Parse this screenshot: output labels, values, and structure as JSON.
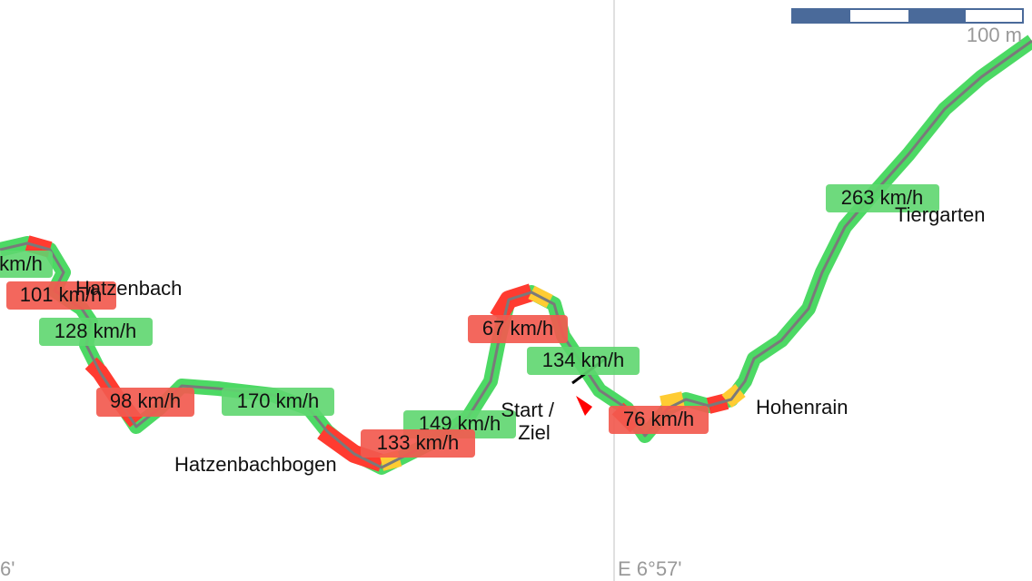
{
  "map": {
    "scale_label": "100 m",
    "longitude_labels": [
      "6'",
      "E 6°57'"
    ],
    "speed_labels": [
      "km/h",
      "101 km/h",
      "128 km/h",
      "98 km/h",
      "170 km/h",
      "149 km/h",
      "133 km/h",
      "67 km/h",
      "134 km/h",
      "76 km/h",
      "263 km/h"
    ],
    "place_names": [
      "Hatzenbach",
      "Hatzenbachbogen",
      "Hohenrain",
      "Tiergarten"
    ],
    "start_finish": [
      "Start /",
      "Ziel"
    ]
  }
}
